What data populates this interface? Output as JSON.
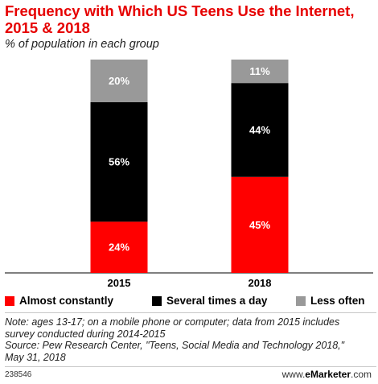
{
  "header": {
    "title": "Frequency with Which US Teens Use the Internet, 2015 & 2018",
    "subtitle": "% of population in each group"
  },
  "colors": {
    "title": "#e60000",
    "Almost constantly": "#ff0000",
    "Several times a day": "#000000",
    "Less often": "#999999"
  },
  "chart_data": {
    "type": "bar",
    "stacked": true,
    "categories": [
      "2015",
      "2018"
    ],
    "series": [
      {
        "name": "Almost constantly",
        "values": [
          24,
          45
        ],
        "labels": [
          "24%",
          "45%"
        ]
      },
      {
        "name": "Several times a day",
        "values": [
          56,
          44
        ],
        "labels": [
          "56%",
          "44%"
        ]
      },
      {
        "name": "Less often",
        "values": [
          20,
          11
        ],
        "labels": [
          "20%",
          "11%"
        ]
      }
    ],
    "ylim": [
      0,
      100
    ],
    "grid": false,
    "legend": "bottom"
  },
  "legend": {
    "items": [
      "Almost constantly",
      "Several times a day",
      "Less often"
    ]
  },
  "note": {
    "line1": "Note: ages 13-17; on a mobile phone or computer; data from 2015 includes",
    "line2": "survey conducted during 2014-2015",
    "line3": "Source: Pew Research Center, \"Teens, Social Media and Technology 2018,\"",
    "line4": "May 31, 2018"
  },
  "footer": {
    "id": "238546",
    "brand_prefix": "www.",
    "brand_name": "eMarketer",
    "brand_suffix": ".com"
  }
}
